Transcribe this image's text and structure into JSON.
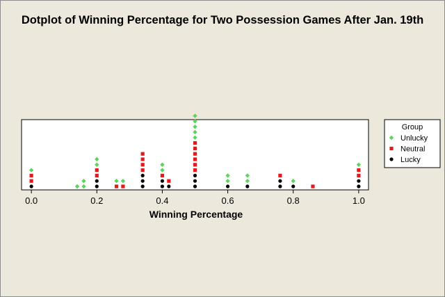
{
  "chart_data": {
    "type": "dotplot",
    "title": "Dotplot of Winning Percentage for Two Possession Games After Jan. 19th",
    "xlabel": "Winning Percentage",
    "xlim": [
      -0.03,
      1.03
    ],
    "xticks": [
      0.0,
      0.2,
      0.4,
      0.6,
      0.8,
      1.0
    ],
    "xtick_labels": [
      "0.0",
      "0.2",
      "0.4",
      "0.6",
      "0.8",
      "1.0"
    ],
    "legend": {
      "title": "Group",
      "placement": "right"
    },
    "series": [
      {
        "name": "Lucky",
        "marker": "circle",
        "color": "#000000"
      },
      {
        "name": "Neutral",
        "marker": "square",
        "color": "#e31a1c"
      },
      {
        "name": "Unlucky",
        "marker": "diamond",
        "color": "#5fd35f"
      }
    ],
    "legend_order": [
      "Unlucky",
      "Neutral",
      "Lucky"
    ],
    "stacks": [
      {
        "x": 0.0,
        "dots": [
          "Lucky",
          "Neutral",
          "Neutral",
          "Unlucky"
        ]
      },
      {
        "x": 0.14,
        "dots": [
          "Unlucky"
        ]
      },
      {
        "x": 0.16,
        "dots": [
          "Unlucky",
          "Unlucky"
        ]
      },
      {
        "x": 0.2,
        "dots": [
          "Lucky",
          "Lucky",
          "Neutral",
          "Neutral",
          "Unlucky",
          "Unlucky"
        ]
      },
      {
        "x": 0.26,
        "dots": [
          "Neutral",
          "Unlucky"
        ]
      },
      {
        "x": 0.28,
        "dots": [
          "Neutral",
          "Unlucky"
        ]
      },
      {
        "x": 0.34,
        "dots": [
          "Lucky",
          "Lucky",
          "Lucky",
          "Neutral",
          "Neutral",
          "Neutral",
          "Neutral"
        ]
      },
      {
        "x": 0.4,
        "dots": [
          "Lucky",
          "Lucky",
          "Neutral",
          "Unlucky",
          "Unlucky"
        ]
      },
      {
        "x": 0.42,
        "dots": [
          "Lucky",
          "Neutral"
        ]
      },
      {
        "x": 0.5,
        "dots": [
          "Lucky",
          "Lucky",
          "Lucky",
          "Neutral",
          "Neutral",
          "Neutral",
          "Neutral",
          "Neutral",
          "Neutral",
          "Unlucky",
          "Unlucky",
          "Unlucky",
          "Unlucky",
          "Unlucky"
        ]
      },
      {
        "x": 0.6,
        "dots": [
          "Lucky",
          "Unlucky",
          "Unlucky"
        ]
      },
      {
        "x": 0.66,
        "dots": [
          "Lucky",
          "Unlucky",
          "Unlucky"
        ]
      },
      {
        "x": 0.76,
        "dots": [
          "Lucky",
          "Lucky",
          "Neutral"
        ]
      },
      {
        "x": 0.8,
        "dots": [
          "Lucky",
          "Unlucky"
        ]
      },
      {
        "x": 0.86,
        "dots": [
          "Neutral"
        ]
      },
      {
        "x": 1.0,
        "dots": [
          "Lucky",
          "Lucky",
          "Neutral",
          "Neutral",
          "Unlucky"
        ]
      }
    ]
  }
}
